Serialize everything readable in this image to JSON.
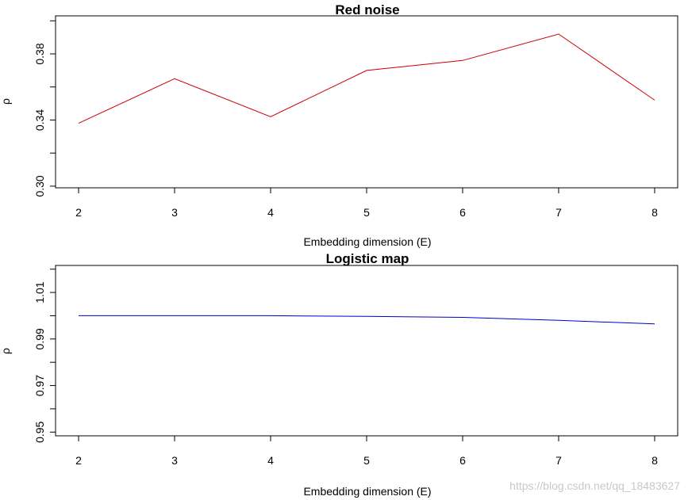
{
  "colors": {
    "red_series": "#cc0000",
    "blue_series": "#0000cc",
    "axis": "#000000"
  },
  "watermark": "https://blog.csdn.net/qq_18483627",
  "chart_data": [
    {
      "type": "line",
      "title": "Red noise",
      "xlabel": "Embedding dimension (E)",
      "ylabel": "ρ",
      "x": [
        2,
        3,
        4,
        5,
        6,
        7,
        8
      ],
      "xticks": [
        "2",
        "3",
        "4",
        "5",
        "6",
        "7",
        "8"
      ],
      "series": [
        {
          "color": "#cc0000",
          "values": [
            0.338,
            0.365,
            0.342,
            0.37,
            0.376,
            0.392,
            0.352
          ]
        }
      ],
      "yticks": [
        "0.30",
        "0.34",
        "0.38"
      ],
      "yticks_minor": [
        0.3,
        0.32,
        0.34,
        0.36,
        0.38,
        0.4
      ],
      "ylim": [
        0.299,
        0.403
      ],
      "grid": false
    },
    {
      "type": "line",
      "title": "Logistic map",
      "xlabel": "Embedding dimension (E)",
      "ylabel": "ρ",
      "x": [
        2,
        3,
        4,
        5,
        6,
        7,
        8
      ],
      "xticks": [
        "2",
        "3",
        "4",
        "5",
        "6",
        "7",
        "8"
      ],
      "series": [
        {
          "color": "#0000cc",
          "values": [
            1.0,
            1.0,
            1.0,
            0.9997,
            0.9993,
            0.998,
            0.9965
          ]
        }
      ],
      "yticks": [
        "0.95",
        "0.97",
        "0.99",
        "1.01"
      ],
      "yticks_minor": [
        0.95,
        0.96,
        0.97,
        0.98,
        0.99,
        1.0,
        1.01,
        1.02
      ],
      "ylim": [
        0.9484,
        1.0216
      ],
      "grid": false
    }
  ]
}
